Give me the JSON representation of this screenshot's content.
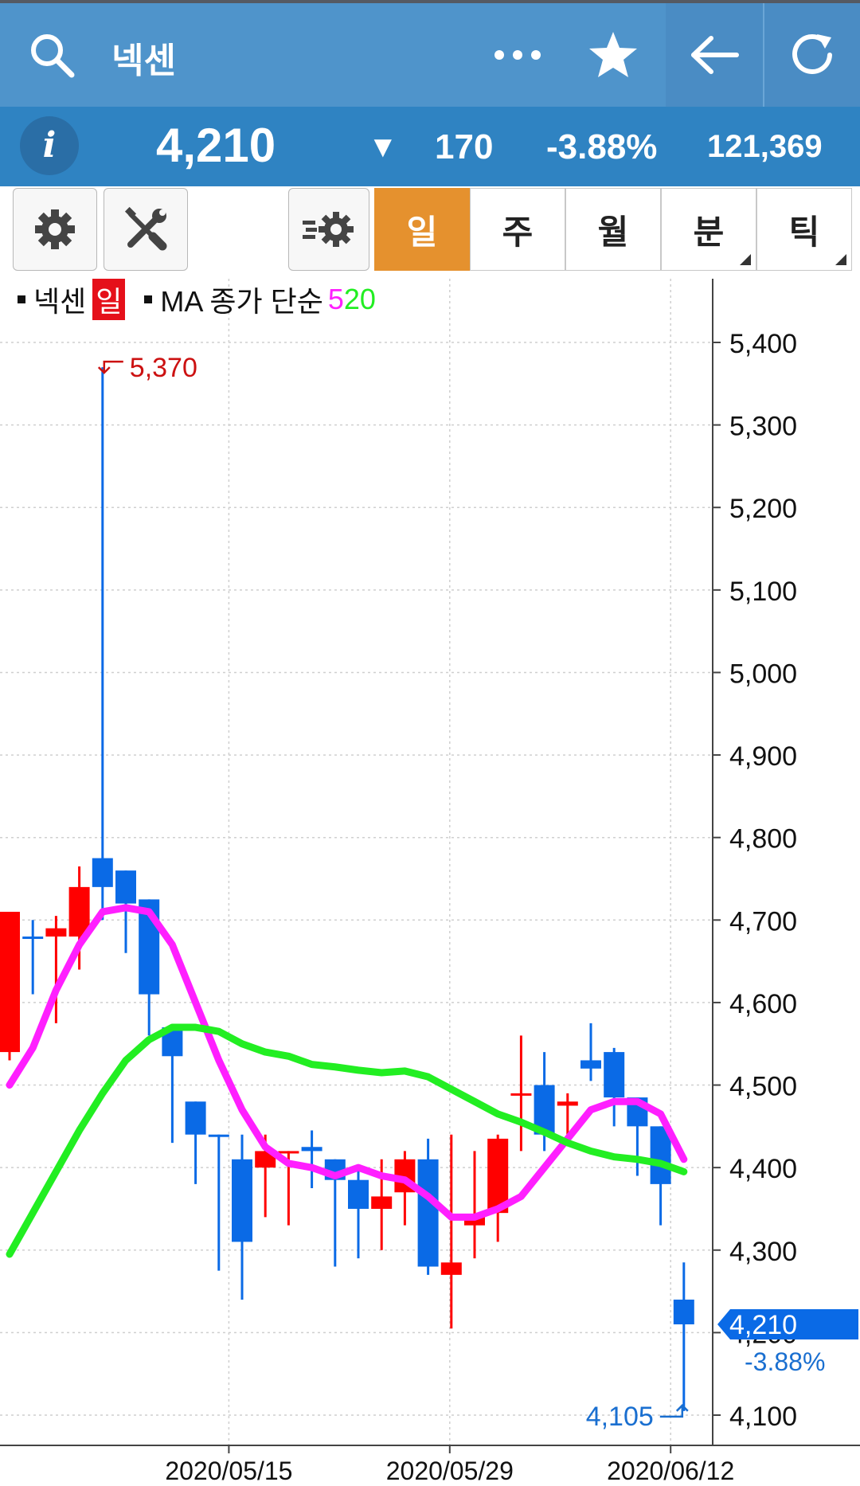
{
  "app": {
    "title": "넥센",
    "icons": {
      "search": "search-icon",
      "more": "more-icon",
      "favorite": "star-icon",
      "back": "back-arrow-icon",
      "refresh": "refresh-icon"
    }
  },
  "quote": {
    "info_label": "i",
    "price": "4,210",
    "direction_symbol": "▼",
    "change": "170",
    "change_pct": "-3.88%",
    "volume": "121,369"
  },
  "toolbar": {
    "icons": [
      "settings-icon",
      "tools-icon",
      "indicator-settings-icon"
    ],
    "tabs": [
      {
        "label": "일",
        "active": true
      },
      {
        "label": "주",
        "active": false
      },
      {
        "label": "월",
        "active": false
      },
      {
        "label": "분",
        "active": false
      },
      {
        "label": "틱",
        "active": false
      }
    ]
  },
  "legend": {
    "series_name": "넥센",
    "period": "일",
    "indicator": "MA 종가 단순",
    "ma_short": "5",
    "ma_long": "20"
  },
  "colors": {
    "appbar": "#4f94cb",
    "quotebar": "#2f83c2",
    "active_tab": "#e5912e",
    "up": "#ff0000",
    "down": "#0a6ae6",
    "ma5": "#ff1fff",
    "ma20": "#22ee22",
    "max_label": "#cc1111",
    "min_label": "#1a6fd0"
  },
  "chart_data": {
    "type": "candlestick",
    "y_ticks": [
      "4,100",
      "4,200",
      "4,300",
      "4,400",
      "4,500",
      "4,600",
      "4,700",
      "4,800",
      "4,900",
      "5,000",
      "5,100",
      "5,200",
      "5,300",
      "5,400"
    ],
    "y_tick_values": [
      4100,
      4200,
      4300,
      4400,
      4500,
      4600,
      4700,
      4800,
      4900,
      5000,
      5100,
      5200,
      5300,
      5400
    ],
    "x_labels": [
      "2020/05/15",
      "2020/05/29",
      "2020/06/12"
    ],
    "ylim": [
      4060,
      5460
    ],
    "grid": true,
    "max_annotation": {
      "label": "5,370",
      "value": 5370
    },
    "min_annotation": {
      "label": "4,105",
      "value": 4105
    },
    "last_price": {
      "label": "4,210",
      "value": 4210,
      "pct": "-3.88%"
    },
    "candles": [
      {
        "o": 4540,
        "h": 4710,
        "l": 4530,
        "c": 4710
      },
      {
        "o": 4680,
        "h": 4700,
        "l": 4610,
        "c": 4680
      },
      {
        "o": 4680,
        "h": 4705,
        "l": 4575,
        "c": 4690
      },
      {
        "o": 4680,
        "h": 4765,
        "l": 4640,
        "c": 4740
      },
      {
        "o": 4775,
        "h": 5370,
        "l": 4700,
        "c": 4740
      },
      {
        "o": 4760,
        "h": 4760,
        "l": 4660,
        "c": 4720
      },
      {
        "o": 4725,
        "h": 4725,
        "l": 4560,
        "c": 4610
      },
      {
        "o": 4570,
        "h": 4570,
        "l": 4430,
        "c": 4535
      },
      {
        "o": 4480,
        "h": 4480,
        "l": 4380,
        "c": 4440
      },
      {
        "o": 4440,
        "h": 4440,
        "l": 4275,
        "c": 4440
      },
      {
        "o": 4410,
        "h": 4440,
        "l": 4240,
        "c": 4310
      },
      {
        "o": 4400,
        "h": 4440,
        "l": 4340,
        "c": 4420
      },
      {
        "o": 4420,
        "h": 4420,
        "l": 4330,
        "c": 4420
      },
      {
        "o": 4425,
        "h": 4445,
        "l": 4375,
        "c": 4420
      },
      {
        "o": 4410,
        "h": 4410,
        "l": 4280,
        "c": 4385
      },
      {
        "o": 4385,
        "h": 4400,
        "l": 4290,
        "c": 4350
      },
      {
        "o": 4350,
        "h": 4410,
        "l": 4300,
        "c": 4365
      },
      {
        "o": 4370,
        "h": 4420,
        "l": 4330,
        "c": 4410
      },
      {
        "o": 4410,
        "h": 4435,
        "l": 4270,
        "c": 4280
      },
      {
        "o": 4270,
        "h": 4440,
        "l": 4205,
        "c": 4285
      },
      {
        "o": 4330,
        "h": 4420,
        "l": 4290,
        "c": 4340
      },
      {
        "o": 4345,
        "h": 4440,
        "l": 4310,
        "c": 4435
      },
      {
        "o": 4490,
        "h": 4560,
        "l": 4420,
        "c": 4490
      },
      {
        "o": 4500,
        "h": 4540,
        "l": 4420,
        "c": 4440
      },
      {
        "o": 4475,
        "h": 4490,
        "l": 4440,
        "c": 4480
      },
      {
        "o": 4530,
        "h": 4575,
        "l": 4505,
        "c": 4520
      },
      {
        "o": 4540,
        "h": 4545,
        "l": 4450,
        "c": 4485
      },
      {
        "o": 4485,
        "h": 4485,
        "l": 4390,
        "c": 4450
      },
      {
        "o": 4450,
        "h": 4450,
        "l": 4330,
        "c": 4380
      },
      {
        "o": 4240,
        "h": 4285,
        "l": 4105,
        "c": 4210
      }
    ],
    "series": [
      {
        "name": "5",
        "values": [
          4500,
          4545,
          4615,
          4670,
          4710,
          4715,
          4710,
          4670,
          4600,
          4530,
          4470,
          4425,
          4405,
          4400,
          4390,
          4400,
          4390,
          4385,
          4365,
          4340,
          4340,
          4350,
          4365,
          4400,
          4435,
          4470,
          4480,
          4480,
          4465,
          4410
        ]
      },
      {
        "name": "20",
        "values": [
          4295,
          4345,
          4395,
          4445,
          4490,
          4530,
          4555,
          4570,
          4570,
          4565,
          4550,
          4540,
          4535,
          4525,
          4522,
          4518,
          4515,
          4517,
          4510,
          4495,
          4480,
          4465,
          4455,
          4443,
          4430,
          4420,
          4413,
          4410,
          4405,
          4395
        ]
      }
    ]
  }
}
